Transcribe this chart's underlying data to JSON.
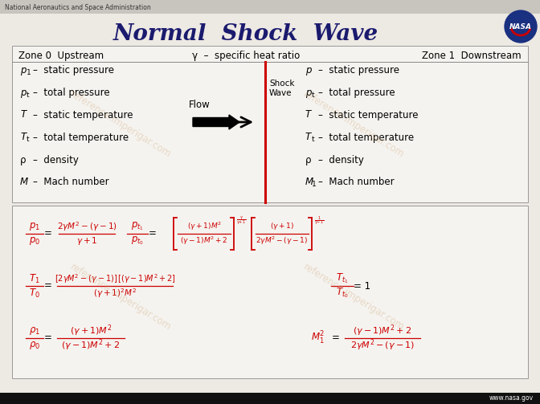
{
  "title": "Normal  Shock  Wave",
  "nasa_text": "National Aeronautics and Space Administration",
  "background_color": "#ede9e3",
  "header_color": "#c8c4be",
  "title_color": "#1a1a6e",
  "title_fontsize": 20,
  "box_color": "#f5f3ef",
  "box_edge_color": "#999999",
  "shock_line_color": "#cc0000",
  "zone0_label": "Zone 0  Upstream",
  "zone1_label": "Zone 1  Downstream",
  "gamma_label": "γ  –  specific heat ratio",
  "upstream_vars": [
    [
      "p",
      "1",
      "–  static pressure"
    ],
    [
      "p",
      "t",
      "–  total pressure"
    ],
    [
      "T",
      "",
      "–  static temperature"
    ],
    [
      "T",
      "t",
      "–  total temperature"
    ],
    [
      "ρ",
      "",
      "–  density"
    ],
    [
      "M",
      "",
      "–  Mach number"
    ]
  ],
  "downstream_vars": [
    [
      "p",
      "",
      "–  static pressure"
    ],
    [
      "p",
      "t",
      "–  total pressure"
    ],
    [
      "T",
      "",
      "–  static temperature"
    ],
    [
      "T",
      "t",
      "–  total temperature"
    ],
    [
      "ρ",
      "",
      "–  density"
    ],
    [
      "M",
      "1",
      "–  Mach number"
    ]
  ],
  "flow_label": "Flow",
  "shock_wave_label": "Shock\nWave",
  "eq_color": "#cc0000",
  "black": "#000000",
  "watermark_color": "#c8a070",
  "watermark_alpha": 0.32,
  "watermark_text": "reference.imperigar.com",
  "bottom_bar_color": "#111111",
  "nasa_url": "www.nasa.gov"
}
